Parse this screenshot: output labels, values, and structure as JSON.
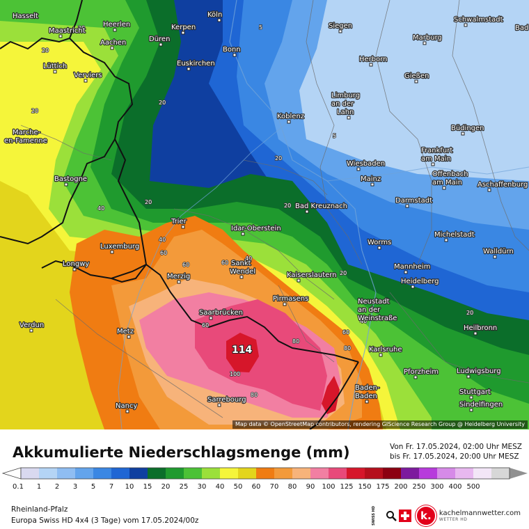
{
  "map": {
    "attribution": "Map data © OpenStreetMap contributors, rendering GIScience Research Group @ Heidelberg University",
    "max_label": "114",
    "cities": [
      {
        "name": "Hasselt"
      },
      {
        "name": "Köln"
      },
      {
        "name": "Schwalmstadt"
      },
      {
        "name": "Bad"
      },
      {
        "name": "Maastricht"
      },
      {
        "name": "Heerlen"
      },
      {
        "name": "Kerpen"
      },
      {
        "name": "Siegen"
      },
      {
        "name": "Aachen"
      },
      {
        "name": "Düren"
      },
      {
        "name": "Bonn"
      },
      {
        "name": "Marburg"
      },
      {
        "name": "Lüttich"
      },
      {
        "name": "Verviers"
      },
      {
        "name": "Euskirchen"
      },
      {
        "name": "Herborn"
      },
      {
        "name": "Gießen"
      },
      {
        "name": "Limburg"
      },
      {
        "name": "an der"
      },
      {
        "name": "Lahn"
      },
      {
        "name": "Marche-"
      },
      {
        "name": "en-Famenne"
      },
      {
        "name": "Koblenz"
      },
      {
        "name": "Büdingen"
      },
      {
        "name": "Frankfurt"
      },
      {
        "name": "am Main"
      },
      {
        "name": "Wiesbaden"
      },
      {
        "name": "Offenbach"
      },
      {
        "name": "am Main"
      },
      {
        "name": "Bastogne"
      },
      {
        "name": "Mainz"
      },
      {
        "name": "Aschaffenburg"
      },
      {
        "name": "Bad Kreuznach"
      },
      {
        "name": "Darmstadt"
      },
      {
        "name": "Trier"
      },
      {
        "name": "Idar-Oberstein"
      },
      {
        "name": "Michelstadt"
      },
      {
        "name": "Luxemburg"
      },
      {
        "name": "Worms"
      },
      {
        "name": "Walldürn"
      },
      {
        "name": "Longwy"
      },
      {
        "name": "Sankt"
      },
      {
        "name": "Wendel"
      },
      {
        "name": "Mannheim"
      },
      {
        "name": "Merzig"
      },
      {
        "name": "Kaiserslautern"
      },
      {
        "name": "Heidelberg"
      },
      {
        "name": "Neustadt"
      },
      {
        "name": "an der"
      },
      {
        "name": "Saarbrücken"
      },
      {
        "name": "Weinstraße"
      },
      {
        "name": "Verdun"
      },
      {
        "name": "Pirmasens"
      },
      {
        "name": "Heilbronn"
      },
      {
        "name": "Metz"
      },
      {
        "name": "Karlsruhe"
      },
      {
        "name": "Pforzheim"
      },
      {
        "name": "Ludwigsburg"
      },
      {
        "name": "Baden-"
      },
      {
        "name": "Baden"
      },
      {
        "name": "Stuttgart"
      },
      {
        "name": "Sarrebourg"
      },
      {
        "name": "Sindelfingen"
      },
      {
        "name": "Nancy"
      }
    ]
  },
  "header": {
    "title": "Akkumulierte Niederschlagsmenge (mm)",
    "period_from": "Von Fr. 17.05.2024, 02:00 Uhr MESZ",
    "period_to": "bis Fr. 17.05.2024, 20:00 Uhr MESZ"
  },
  "legend": {
    "labels": [
      "0.1",
      "1",
      "2",
      "3",
      "5",
      "7",
      "10",
      "15",
      "20",
      "25",
      "30",
      "40",
      "50",
      "60",
      "70",
      "80",
      "90",
      "100",
      "125",
      "150",
      "175",
      "200",
      "250",
      "300",
      "400",
      "500"
    ],
    "colors": [
      "#d9d9f0",
      "#b4d4f5",
      "#8fbdf2",
      "#63a4ec",
      "#3a87e3",
      "#1f66d4",
      "#0f3fa0",
      "#0b6e2a",
      "#1f9a2e",
      "#4cc236",
      "#9be03a",
      "#f5f53a",
      "#e3d51c",
      "#f07c12",
      "#f39a3a",
      "#f7b37a",
      "#f27fa2",
      "#e84a7a",
      "#d6162a",
      "#b50f1c",
      "#8c0011",
      "#7d1a9e",
      "#b73bdc",
      "#d68ae8",
      "#e8b8f0",
      "#f3e6f7",
      "#d7d7d7"
    ]
  },
  "footer": {
    "region": "Rheinland-Pfalz",
    "model": "Europa Swiss HD 4x4 (3 Tage) vom 17.05.2024/00z"
  },
  "logos": {
    "swiss_hd": "SWISS HD",
    "brand_letter": "k.",
    "brand_name": "kachelmannwetter.com",
    "brand_sub": "WETTER HD"
  }
}
